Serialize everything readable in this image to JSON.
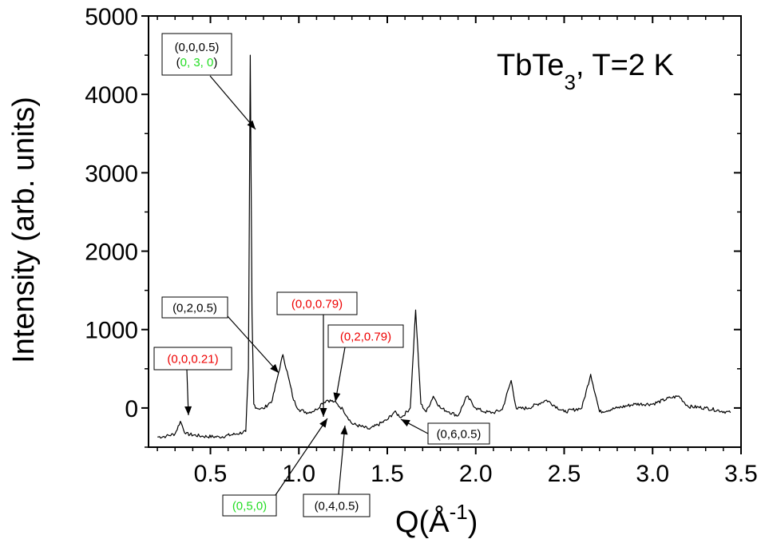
{
  "chart_data": {
    "type": "line",
    "title": "TbTe",
    "title_sub": "3",
    "title_rest": ", T=2 K",
    "xlabel": "Q(",
    "xlabel_unit": "Å",
    "xlabel_sup": "-1",
    "xlabel_close": ")",
    "ylabel": "Intensity (arb. units)",
    "xlim": [
      0.15,
      3.5
    ],
    "ylim": [
      -500,
      5000
    ],
    "xticks": [
      0.5,
      1.0,
      1.5,
      2.0,
      2.5,
      3.0,
      3.5
    ],
    "xtick_labels": [
      "0.5",
      "1.0",
      "1.5",
      "2.0",
      "2.5",
      "3.0",
      "3.5"
    ],
    "yticks": [
      0,
      1000,
      2000,
      3000,
      4000,
      5000
    ],
    "ytick_labels": [
      "0",
      "1000",
      "2000",
      "3000",
      "4000",
      "5000"
    ],
    "grid": false,
    "series": [
      {
        "color": "#000000",
        "x": [
          0.2,
          0.25,
          0.3,
          0.33,
          0.36,
          0.45,
          0.55,
          0.65,
          0.7,
          0.715,
          0.725,
          0.735,
          0.745,
          0.76,
          0.8,
          0.85,
          0.88,
          0.91,
          0.94,
          0.97,
          1.0,
          1.05,
          1.1,
          1.13,
          1.16,
          1.2,
          1.25,
          1.3,
          1.4,
          1.5,
          1.54,
          1.58,
          1.63,
          1.66,
          1.69,
          1.72,
          1.76,
          1.8,
          1.85,
          1.9,
          1.95,
          2.0,
          2.05,
          2.1,
          2.15,
          2.2,
          2.23,
          2.3,
          2.4,
          2.5,
          2.6,
          2.65,
          2.7,
          2.8,
          2.9,
          3.0,
          3.1,
          3.15,
          3.2,
          3.3,
          3.44
        ],
        "y": [
          -370,
          -360,
          -330,
          -170,
          -330,
          -360,
          -370,
          -330,
          -300,
          500,
          4500,
          1200,
          50,
          0,
          -10,
          100,
          400,
          680,
          400,
          100,
          -20,
          -60,
          -20,
          60,
          100,
          80,
          -20,
          -200,
          -270,
          -150,
          -50,
          -120,
          0,
          1250,
          50,
          -50,
          150,
          0,
          -50,
          -100,
          150,
          0,
          -50,
          -60,
          -20,
          350,
          -10,
          0,
          100,
          -50,
          0,
          430,
          -50,
          0,
          50,
          50,
          130,
          150,
          20,
          0,
          -60
        ]
      }
    ],
    "annotations": [
      {
        "lines": [
          [
            [
              "(0,0,0.5)",
              "#000000"
            ]
          ],
          [
            [
              "(",
              "#000000"
            ],
            [
              "0, 3, 0",
              "#22dd22"
            ],
            [
              ")",
              "#000000"
            ]
          ]
        ]
      },
      {
        "lines": [
          [
            [
              "(0,2,0.5)",
              "#000000"
            ]
          ]
        ]
      },
      {
        "lines": [
          [
            [
              "(0,0,0.79)",
              "#ee0000"
            ]
          ]
        ]
      },
      {
        "lines": [
          [
            [
              "(0,2,0.79)",
              "#ee0000"
            ]
          ]
        ]
      },
      {
        "lines": [
          [
            [
              "(0,0,0.21)",
              "#ee0000"
            ]
          ]
        ]
      },
      {
        "lines": [
          [
            [
              "(0,6,0.5)",
              "#000000"
            ]
          ]
        ]
      },
      {
        "lines": [
          [
            [
              "(0,5,0)",
              "#22dd22"
            ]
          ]
        ]
      },
      {
        "lines": [
          [
            [
              "(0,4,0.5)",
              "#000000"
            ]
          ]
        ]
      }
    ]
  }
}
